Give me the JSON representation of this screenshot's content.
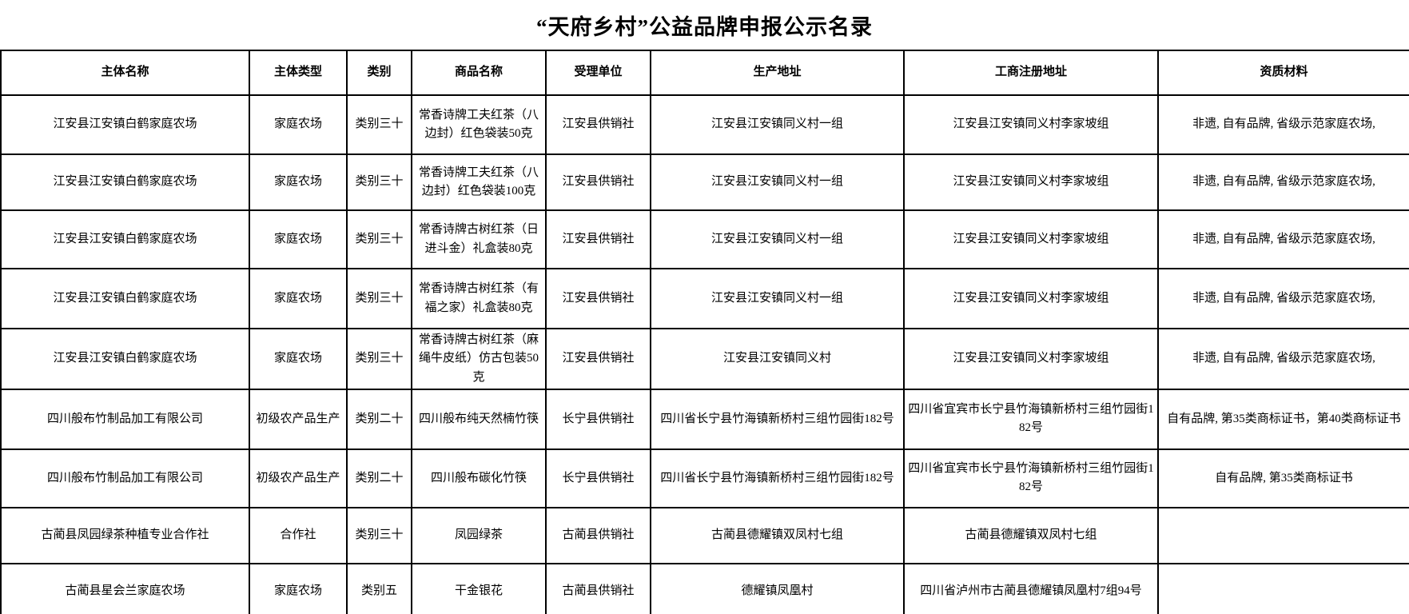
{
  "page": {
    "title": "“天府乡村”公益品牌申报公示名录"
  },
  "table": {
    "headers": [
      "主体名称",
      "主体类型",
      "类别",
      "商品名称",
      "受理单位",
      "生产地址",
      "工商注册地址",
      "资质材料"
    ],
    "rows": [
      [
        "江安县江安镇白鹤家庭农场",
        "家庭农场",
        "类别三十",
        "常香诗牌工夫红茶（八边封）红色袋装50克",
        "江安县供销社",
        "江安县江安镇同义村一组",
        "江安县江安镇同义村李家坡组",
        "非遗, 自有品牌, 省级示范家庭农场,"
      ],
      [
        "江安县江安镇白鹤家庭农场",
        "家庭农场",
        "类别三十",
        "常香诗牌工夫红茶（八边封）红色袋装100克",
        "江安县供销社",
        "江安县江安镇同义村一组",
        "江安县江安镇同义村李家坡组",
        "非遗, 自有品牌, 省级示范家庭农场,"
      ],
      [
        "江安县江安镇白鹤家庭农场",
        "家庭农场",
        "类别三十",
        "常香诗牌古树红茶（日进斗金）礼盒装80克",
        "江安县供销社",
        "江安县江安镇同义村一组",
        "江安县江安镇同义村李家坡组",
        "非遗, 自有品牌, 省级示范家庭农场,"
      ],
      [
        "江安县江安镇白鹤家庭农场",
        "家庭农场",
        "类别三十",
        "常香诗牌古树红茶（有福之家）礼盒装80克",
        "江安县供销社",
        "江安县江安镇同义村一组",
        "江安县江安镇同义村李家坡组",
        "非遗, 自有品牌, 省级示范家庭农场,"
      ],
      [
        "江安县江安镇白鹤家庭农场",
        "家庭农场",
        "类别三十",
        "常香诗牌古树红茶（麻绳牛皮纸）仿古包装50克",
        "江安县供销社",
        "江安县江安镇同义村",
        "江安县江安镇同义村李家坡组",
        "非遗, 自有品牌, 省级示范家庭农场,"
      ],
      [
        "四川般布竹制品加工有限公司",
        "初级农产品生产",
        "类别二十",
        "四川般布纯天然楠竹筷",
        "长宁县供销社",
        "四川省长宁县竹海镇新桥村三组竹园街182号",
        "四川省宜宾市长宁县竹海镇新桥村三组竹园街182号",
        "自有品牌, 第35类商标证书，第40类商标证书"
      ],
      [
        "四川般布竹制品加工有限公司",
        "初级农产品生产",
        "类别二十",
        "四川般布碳化竹筷",
        "长宁县供销社",
        "四川省长宁县竹海镇新桥村三组竹园街182号",
        "四川省宜宾市长宁县竹海镇新桥村三组竹园街182号",
        "自有品牌, 第35类商标证书"
      ],
      [
        "古蔺县凤园绿茶种植专业合作社",
        "合作社",
        "类别三十",
        "凤园绿茶",
        "古蔺县供销社",
        "古蔺县德耀镇双凤村七组",
        "古蔺县德耀镇双凤村七组",
        ""
      ],
      [
        "古蔺县星会兰家庭农场",
        "家庭农场",
        "类别五",
        "干金银花",
        "古蔺县供销社",
        "德耀镇凤凰村",
        "四川省泸州市古蔺县德耀镇凤凰村7组94号",
        ""
      ]
    ]
  }
}
